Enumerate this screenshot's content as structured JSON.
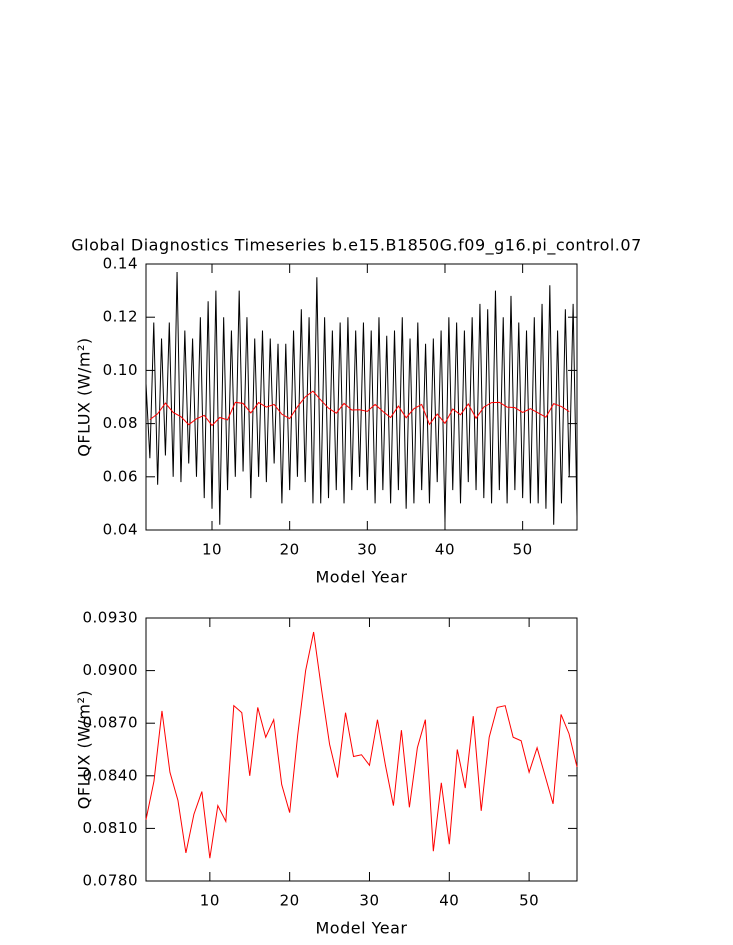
{
  "chart_data": [
    {
      "type": "line",
      "title": "Global Diagnostics Timeseries b.e15.B1850G.f09_g16.pi_control.07",
      "xlabel": "Model Year",
      "ylabel": "QFLUX (W/m²)",
      "xlim": [
        1.5,
        57
      ],
      "xticks": [
        10,
        20,
        30,
        40,
        50
      ],
      "ylim": [
        0.04,
        0.14
      ],
      "yticks": [
        0.04,
        0.06,
        0.08,
        {
          "value": 0.1,
          "label": "0.10"
        },
        0.12,
        0.14
      ],
      "series": [
        {
          "color": "#000000",
          "x": [
            1.5,
            2,
            2.5,
            3,
            3.5,
            4,
            4.5,
            5,
            5.5,
            6,
            6.5,
            7,
            7.5,
            8,
            8.5,
            9,
            9.5,
            10,
            10.5,
            11,
            11.5,
            12,
            12.5,
            13,
            13.5,
            14,
            14.5,
            15,
            15.5,
            16,
            16.5,
            17,
            17.5,
            18,
            18.5,
            19,
            19.5,
            20,
            20.5,
            21,
            21.5,
            22,
            22.5,
            23,
            23.5,
            24,
            24.5,
            25,
            25.5,
            26,
            26.5,
            27,
            27.5,
            28,
            28.5,
            29,
            29.5,
            30,
            30.5,
            31,
            31.5,
            32,
            32.5,
            33,
            33.5,
            34,
            34.5,
            35,
            35.5,
            36,
            36.5,
            37,
            37.5,
            38,
            38.5,
            39,
            39.5,
            40,
            40.5,
            41,
            41.5,
            42,
            42.5,
            43,
            43.5,
            44,
            44.5,
            45,
            45.5,
            46,
            46.5,
            47,
            47.5,
            48,
            48.5,
            49,
            49.5,
            50,
            50.5,
            51,
            51.5,
            52,
            52.5,
            53,
            53.5,
            54,
            54.5,
            55,
            55.5,
            56,
            56.5,
            57
          ],
          "values": [
            0.095,
            0.067,
            0.118,
            0.057,
            0.112,
            0.068,
            0.118,
            0.06,
            0.137,
            0.058,
            0.115,
            0.065,
            0.112,
            0.06,
            0.12,
            0.052,
            0.126,
            0.048,
            0.13,
            0.042,
            0.12,
            0.055,
            0.115,
            0.06,
            0.13,
            0.062,
            0.12,
            0.052,
            0.112,
            0.06,
            0.115,
            0.058,
            0.112,
            0.065,
            0.11,
            0.05,
            0.11,
            0.055,
            0.115,
            0.06,
            0.123,
            0.058,
            0.12,
            0.05,
            0.135,
            0.05,
            0.12,
            0.052,
            0.115,
            0.055,
            0.118,
            0.05,
            0.12,
            0.055,
            0.115,
            0.06,
            0.118,
            0.055,
            0.115,
            0.05,
            0.12,
            0.055,
            0.113,
            0.05,
            0.115,
            0.055,
            0.12,
            0.048,
            0.112,
            0.05,
            0.118,
            0.055,
            0.11,
            0.05,
            0.112,
            0.058,
            0.115,
            0.043,
            0.12,
            0.055,
            0.118,
            0.05,
            0.115,
            0.058,
            0.12,
            0.055,
            0.125,
            0.052,
            0.123,
            0.05,
            0.13,
            0.055,
            0.12,
            0.05,
            0.128,
            0.055,
            0.118,
            0.052,
            0.115,
            0.05,
            0.12,
            0.05,
            0.125,
            0.048,
            0.132,
            0.042,
            0.115,
            0.05,
            0.123,
            0.06,
            0.125,
            0.045
          ]
        },
        {
          "color": "#ff0000",
          "x": [
            2,
            3,
            4,
            5,
            6,
            7,
            8,
            9,
            10,
            11,
            12,
            13,
            14,
            15,
            16,
            17,
            18,
            19,
            20,
            21,
            22,
            23,
            24,
            25,
            26,
            27,
            28,
            29,
            30,
            31,
            32,
            33,
            34,
            35,
            36,
            37,
            38,
            39,
            40,
            41,
            42,
            43,
            44,
            45,
            46,
            47,
            48,
            49,
            50,
            51,
            52,
            53,
            54,
            55,
            56
          ],
          "values": [
            0.0815,
            0.0837,
            0.0877,
            0.0842,
            0.0826,
            0.0796,
            0.0818,
            0.0831,
            0.0793,
            0.0823,
            0.0814,
            0.088,
            0.0876,
            0.084,
            0.0879,
            0.0862,
            0.0872,
            0.0835,
            0.0819,
            0.0863,
            0.09,
            0.0922,
            0.0889,
            0.0858,
            0.0839,
            0.0876,
            0.0851,
            0.0852,
            0.0846,
            0.0872,
            0.0846,
            0.0823,
            0.0866,
            0.0822,
            0.0856,
            0.0872,
            0.0797,
            0.0836,
            0.0801,
            0.0855,
            0.0833,
            0.0874,
            0.082,
            0.0862,
            0.0879,
            0.088,
            0.0862,
            0.086,
            0.0842,
            0.0856,
            0.084,
            0.0824,
            0.0875,
            0.0864,
            0.0845
          ]
        }
      ]
    },
    {
      "type": "line",
      "xlabel": "Model Year",
      "ylabel": "QFLUX (W/m²)",
      "xlim": [
        2,
        56
      ],
      "xticks": [
        10,
        20,
        30,
        40,
        50
      ],
      "ylim": [
        0.078,
        0.093
      ],
      "yticks": [
        {
          "value": 0.078,
          "label": "0.0780"
        },
        {
          "value": 0.081,
          "label": "0.0810"
        },
        {
          "value": 0.084,
          "label": "0.0840"
        },
        {
          "value": 0.087,
          "label": "0.0870"
        },
        {
          "value": 0.09,
          "label": "0.0900"
        },
        {
          "value": 0.093,
          "label": "0.0930"
        }
      ],
      "series": [
        {
          "color": "#ff0000",
          "x": [
            2,
            3,
            4,
            5,
            6,
            7,
            8,
            9,
            10,
            11,
            12,
            13,
            14,
            15,
            16,
            17,
            18,
            19,
            20,
            21,
            22,
            23,
            24,
            25,
            26,
            27,
            28,
            29,
            30,
            31,
            32,
            33,
            34,
            35,
            36,
            37,
            38,
            39,
            40,
            41,
            42,
            43,
            44,
            45,
            46,
            47,
            48,
            49,
            50,
            51,
            52,
            53,
            54,
            55,
            56
          ],
          "values": [
            0.0815,
            0.0837,
            0.0877,
            0.0842,
            0.0826,
            0.0796,
            0.0818,
            0.0831,
            0.0793,
            0.0823,
            0.0814,
            0.088,
            0.0876,
            0.084,
            0.0879,
            0.0862,
            0.0872,
            0.0835,
            0.0819,
            0.0863,
            0.09,
            0.0922,
            0.0889,
            0.0858,
            0.0839,
            0.0876,
            0.0851,
            0.0852,
            0.0846,
            0.0872,
            0.0846,
            0.0823,
            0.0866,
            0.0822,
            0.0856,
            0.0872,
            0.0797,
            0.0836,
            0.0801,
            0.0855,
            0.0833,
            0.0874,
            0.082,
            0.0862,
            0.0879,
            0.088,
            0.0862,
            0.086,
            0.0842,
            0.0856,
            0.084,
            0.0824,
            0.0875,
            0.0864,
            0.0845
          ]
        }
      ]
    }
  ]
}
